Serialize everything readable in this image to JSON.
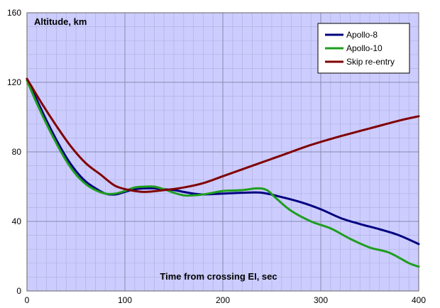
{
  "chart_data": {
    "type": "line",
    "title": "",
    "ylabel": "Altitude, km",
    "xlabel": "Time from crossing EI, sec",
    "xlim": [
      0,
      400
    ],
    "ylim": [
      0,
      160
    ],
    "xticks": [
      0,
      100,
      200,
      300,
      400
    ],
    "yticks": [
      0,
      40,
      80,
      120,
      160
    ],
    "grid": true,
    "legend_position": "top-right",
    "colors": {
      "plot_background": "#ccccff",
      "grid_major": "#8a8ab0",
      "grid_minor": "#b3b3dd",
      "frame": "#666666"
    },
    "series": [
      {
        "name": "Apollo-8",
        "color": "#000080",
        "points": [
          [
            0,
            122
          ],
          [
            10,
            110
          ],
          [
            20,
            98
          ],
          [
            30,
            87
          ],
          [
            40,
            77
          ],
          [
            50,
            69
          ],
          [
            60,
            63
          ],
          [
            70,
            59
          ],
          [
            80,
            56
          ],
          [
            90,
            55.5
          ],
          [
            100,
            57
          ],
          [
            110,
            58.5
          ],
          [
            120,
            59
          ],
          [
            130,
            59
          ],
          [
            140,
            58.5
          ],
          [
            150,
            58
          ],
          [
            160,
            57
          ],
          [
            170,
            56
          ],
          [
            180,
            55.5
          ],
          [
            200,
            56
          ],
          [
            220,
            56.5
          ],
          [
            240,
            56.5
          ],
          [
            260,
            54
          ],
          [
            280,
            51
          ],
          [
            300,
            47
          ],
          [
            320,
            42
          ],
          [
            340,
            38.5
          ],
          [
            360,
            35.5
          ],
          [
            380,
            32
          ],
          [
            400,
            27
          ]
        ]
      },
      {
        "name": "Apollo-10",
        "color": "#1e9e1e",
        "points": [
          [
            0,
            121
          ],
          [
            10,
            108
          ],
          [
            20,
            96
          ],
          [
            30,
            85
          ],
          [
            40,
            75
          ],
          [
            50,
            67
          ],
          [
            60,
            61.5
          ],
          [
            70,
            58
          ],
          [
            80,
            56
          ],
          [
            90,
            56
          ],
          [
            100,
            57.5
          ],
          [
            110,
            59.5
          ],
          [
            120,
            60
          ],
          [
            130,
            60
          ],
          [
            140,
            58.5
          ],
          [
            150,
            56.5
          ],
          [
            160,
            55
          ],
          [
            170,
            55
          ],
          [
            180,
            55.5
          ],
          [
            190,
            56.5
          ],
          [
            200,
            57.5
          ],
          [
            220,
            58
          ],
          [
            235,
            59
          ],
          [
            245,
            58
          ],
          [
            255,
            53
          ],
          [
            270,
            46
          ],
          [
            290,
            40
          ],
          [
            310,
            36
          ],
          [
            330,
            30
          ],
          [
            350,
            25
          ],
          [
            370,
            22
          ],
          [
            390,
            16
          ],
          [
            400,
            14
          ]
        ]
      },
      {
        "name": "Skip re-entry",
        "color": "#800000",
        "points": [
          [
            0,
            122
          ],
          [
            15,
            108
          ],
          [
            30,
            95
          ],
          [
            45,
            83
          ],
          [
            60,
            73.5
          ],
          [
            75,
            67
          ],
          [
            90,
            60.5
          ],
          [
            105,
            58
          ],
          [
            120,
            57
          ],
          [
            140,
            58
          ],
          [
            160,
            59.5
          ],
          [
            180,
            62
          ],
          [
            200,
            66
          ],
          [
            230,
            72
          ],
          [
            260,
            78
          ],
          [
            290,
            84
          ],
          [
            320,
            89
          ],
          [
            350,
            93.5
          ],
          [
            380,
            98
          ],
          [
            400,
            100.5
          ]
        ]
      }
    ]
  }
}
